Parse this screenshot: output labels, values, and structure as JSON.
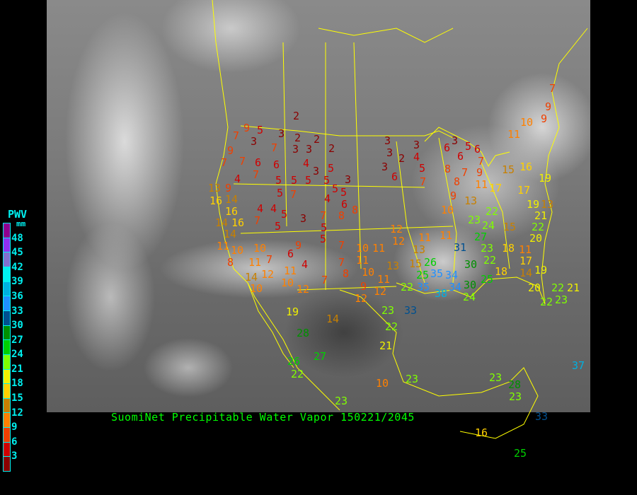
{
  "title": "SuomiNet Precipitable Water Vapor 150221/2045",
  "legend": {
    "title": "PWV",
    "unit": "mm",
    "ticks": [
      "3",
      "6",
      "9",
      "12",
      "15",
      "18",
      "21",
      "24",
      "27",
      "30",
      "33",
      "36",
      "39",
      "42",
      "45",
      "48"
    ],
    "colors": [
      "#8b0000",
      "#d00000",
      "#f04000",
      "#ff8000",
      "#c88000",
      "#ffd000",
      "#f0f000",
      "#80ff00",
      "#00d000",
      "#009000",
      "#005090",
      "#2090ff",
      "#00b0e0",
      "#00f0f0",
      "#8070d0",
      "#9030f0",
      "#900090"
    ]
  },
  "colors": {
    "borders": "#ffff00",
    "title": "#00ff00",
    "legend_text": "#00f0f0"
  },
  "stations": {
    "values": [
      "2",
      "9",
      "5",
      "3",
      "7",
      "3",
      "2",
      "2",
      "3",
      "3",
      "2",
      "7",
      "9",
      "7",
      "6",
      "7",
      "6",
      "4",
      "7",
      "3",
      "5",
      "5",
      "3",
      "4",
      "5",
      "5",
      "5",
      "13",
      "9",
      "5",
      "5",
      "6",
      "4",
      "5",
      "7",
      "16",
      "14",
      "16",
      "8",
      "8",
      "14",
      "16",
      "4",
      "4",
      "7",
      "5",
      "3",
      "7",
      "5",
      "5",
      "5",
      "14",
      "11",
      "10",
      "10",
      "7",
      "9",
      "6",
      "4",
      "7",
      "10",
      "11",
      "7",
      "8",
      "7",
      "11",
      "10",
      "12",
      "11",
      "10",
      "11",
      "9",
      "12",
      "12",
      "8",
      "11",
      "12",
      "14",
      "10",
      "3",
      "3",
      "2",
      "3",
      "6",
      "3",
      "4",
      "5",
      "7",
      "6",
      "3",
      "5",
      "6",
      "6",
      "7",
      "8",
      "9",
      "7",
      "8",
      "9",
      "13",
      "10",
      "11",
      "17",
      "12",
      "12",
      "11",
      "11",
      "13",
      "15",
      "26",
      "13",
      "23",
      "22",
      "27",
      "24",
      "15",
      "22",
      "31",
      "23",
      "22",
      "18",
      "11",
      "20",
      "30",
      "17",
      "19",
      "18",
      "14",
      "25",
      "25",
      "35",
      "34",
      "35",
      "34",
      "38",
      "30",
      "24",
      "22",
      "20",
      "22",
      "21",
      "22",
      "23",
      "33",
      "23",
      "7",
      "9",
      "9",
      "10",
      "11",
      "15",
      "16",
      "19",
      "17",
      "19",
      "13",
      "21",
      "22",
      "21",
      "19",
      "14",
      "28",
      "27",
      "26",
      "22",
      "10",
      "23",
      "23",
      "23",
      "28",
      "23",
      "33",
      "16",
      "25",
      "37"
    ]
  }
}
